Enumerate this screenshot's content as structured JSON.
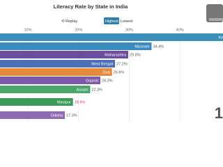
{
  "chart_data": {
    "type": "bar",
    "orientation": "horizontal",
    "title": "Literacy Rate by State in India",
    "buttons": [
      "⟲ Replay",
      "Highest",
      "Lowest"
    ],
    "active_button": "Highest",
    "categories": [
      "Kerala",
      "Mizoram",
      "Maharashtra",
      "West Bengal",
      "Goa",
      "Gujarat",
      "Assam",
      "Manipur",
      "Odisha"
    ],
    "values": [
      50.2,
      34.4,
      29.8,
      27.2,
      26.6,
      24.3,
      22.3,
      18.9,
      17.3
    ],
    "value_labels": [
      null,
      "34.4%",
      "29.8%",
      "27.2%",
      "26.6%",
      "24.3%",
      "22.3%",
      "18.9%",
      "17.3%"
    ],
    "colors": [
      "#3b8fb8",
      "#3a8cc0",
      "#6a4d9d",
      "#4d6fb6",
      "#e38b3a",
      "#7c5aa8",
      "#4aa66b",
      "#3c9a5a",
      "#8e6bb1"
    ],
    "xlim": [
      4.5,
      48.5
    ],
    "xticks": [
      {
        "value": 10,
        "label": "10%"
      },
      {
        "value": 20,
        "label": "20%"
      },
      {
        "value": 30,
        "label": "30%"
      },
      {
        "value": 40,
        "label": "40%"
      }
    ],
    "grid": true,
    "counter": "1"
  }
}
